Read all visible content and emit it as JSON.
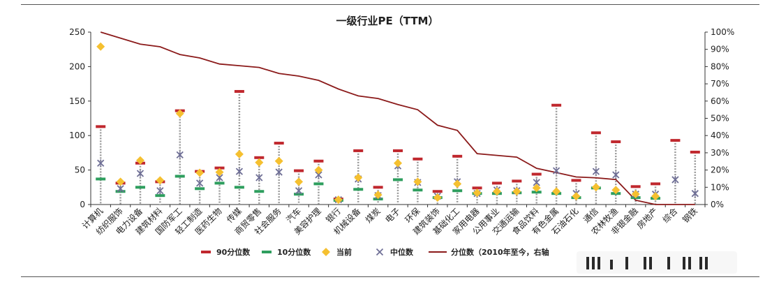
{
  "chart_data": {
    "type": "scatter",
    "title": "一级行业PE（TTM）",
    "categories": [
      "计算机",
      "纺织服饰",
      "电力设备",
      "建筑材料",
      "国防军工",
      "轻工制造",
      "医药生物",
      "传媒",
      "商贸零售",
      "社会服务",
      "汽车",
      "美容护理",
      "银行",
      "机械设备",
      "煤炭",
      "电子",
      "环保",
      "建筑装饰",
      "基础化工",
      "家用电器",
      "公用事业",
      "交通运输",
      "食品饮料",
      "有色金属",
      "石油石化",
      "通信",
      "农林牧渔",
      "非银金融",
      "房地产",
      "综合",
      "钢铁"
    ],
    "series": [
      {
        "name": "90分位数",
        "color": "#c0282e",
        "values": [
          113,
          31,
          60,
          33,
          136,
          48,
          53,
          164,
          68,
          89,
          49,
          63,
          8,
          78,
          25,
          78,
          66,
          19,
          70,
          24,
          31,
          34,
          44,
          144,
          35,
          104,
          91,
          26,
          30,
          93,
          76
        ]
      },
      {
        "name": "10分位数",
        "color": "#2e9e5e",
        "values": [
          37,
          19,
          25,
          13,
          41,
          23,
          31,
          25,
          19,
          null,
          15,
          30,
          6,
          22,
          8,
          36,
          21,
          10,
          20,
          16,
          16,
          17,
          18,
          16,
          10,
          24,
          16,
          10,
          9,
          null,
          null
        ]
      },
      {
        "name": "当前",
        "color": "#f5c030",
        "values": [
          229,
          33,
          64,
          35,
          132,
          46,
          47,
          73,
          61,
          63,
          33,
          50,
          7,
          39,
          14,
          60,
          33,
          10,
          30,
          17,
          19,
          19,
          24,
          19,
          12,
          25,
          21,
          15,
          12,
          null,
          null
        ]
      },
      {
        "name": "中位数",
        "color": "#6f6f96",
        "values": [
          60,
          23,
          45,
          20,
          72,
          31,
          39,
          48,
          39,
          47,
          20,
          43,
          7,
          37,
          13,
          56,
          32,
          12,
          33,
          16,
          21,
          20,
          32,
          49,
          16,
          48,
          43,
          15,
          15,
          36,
          16
        ]
      },
      {
        "name": "分位数（2010年至今，右轴",
        "color": "#8b1a1a",
        "axis": "right",
        "values": [
          1.0,
          0.965,
          0.93,
          0.915,
          0.87,
          0.85,
          0.815,
          0.805,
          0.795,
          0.76,
          0.745,
          0.72,
          0.67,
          0.63,
          0.615,
          0.58,
          0.55,
          0.46,
          0.43,
          0.295,
          0.285,
          0.275,
          0.21,
          0.185,
          0.16,
          0.155,
          0.145,
          0.025,
          0.0,
          0.0,
          0.0
        ]
      }
    ],
    "y_left": {
      "min": 0,
      "max": 250,
      "ticks": [
        0,
        50,
        100,
        150,
        200,
        250
      ]
    },
    "y_right": {
      "min": 0,
      "max": 1,
      "ticks": [
        "0%",
        "10%",
        "20%",
        "30%",
        "40%",
        "50%",
        "60%",
        "70%",
        "80%",
        "90%",
        "100%"
      ]
    },
    "grid": false,
    "legend_position": "bottom"
  }
}
